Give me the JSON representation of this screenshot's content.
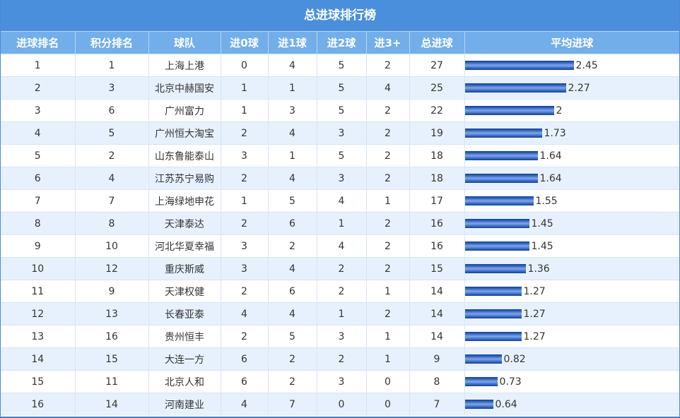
{
  "title": "总进球排行榜",
  "columns": [
    "进球排名",
    "积分排名",
    "球队",
    "进0球",
    "进1球",
    "进2球",
    "进3+",
    "总进球",
    "平均进球"
  ],
  "colors": {
    "title_bg": "#4a8fdc",
    "header_bg": "#72aeea",
    "row_alt_bg": "#e6f1fd",
    "bar": "#1f4fa8"
  },
  "rows": [
    {
      "goal_rank": "1",
      "points_rank": "1",
      "team": "上海上港",
      "g0": "0",
      "g1": "4",
      "g2": "5",
      "g3": "2",
      "total": "27",
      "avg": "2.45"
    },
    {
      "goal_rank": "2",
      "points_rank": "3",
      "team": "北京中赫国安",
      "g0": "1",
      "g1": "1",
      "g2": "5",
      "g3": "4",
      "total": "25",
      "avg": "2.27"
    },
    {
      "goal_rank": "3",
      "points_rank": "6",
      "team": "广州富力",
      "g0": "1",
      "g1": "3",
      "g2": "5",
      "g3": "2",
      "total": "22",
      "avg": "2"
    },
    {
      "goal_rank": "4",
      "points_rank": "5",
      "team": "广州恒大淘宝",
      "g0": "2",
      "g1": "4",
      "g2": "3",
      "g3": "2",
      "total": "19",
      "avg": "1.73"
    },
    {
      "goal_rank": "5",
      "points_rank": "2",
      "team": "山东鲁能泰山",
      "g0": "3",
      "g1": "1",
      "g2": "5",
      "g3": "2",
      "total": "18",
      "avg": "1.64"
    },
    {
      "goal_rank": "6",
      "points_rank": "4",
      "team": "江苏苏宁易购",
      "g0": "2",
      "g1": "4",
      "g2": "3",
      "g3": "2",
      "total": "18",
      "avg": "1.64"
    },
    {
      "goal_rank": "7",
      "points_rank": "7",
      "team": "上海绿地申花",
      "g0": "1",
      "g1": "5",
      "g2": "4",
      "g3": "1",
      "total": "17",
      "avg": "1.55"
    },
    {
      "goal_rank": "8",
      "points_rank": "8",
      "team": "天津泰达",
      "g0": "2",
      "g1": "6",
      "g2": "1",
      "g3": "2",
      "total": "16",
      "avg": "1.45"
    },
    {
      "goal_rank": "9",
      "points_rank": "10",
      "team": "河北华夏幸福",
      "g0": "3",
      "g1": "2",
      "g2": "4",
      "g3": "2",
      "total": "16",
      "avg": "1.45"
    },
    {
      "goal_rank": "10",
      "points_rank": "12",
      "team": "重庆斯威",
      "g0": "3",
      "g1": "4",
      "g2": "2",
      "g3": "2",
      "total": "15",
      "avg": "1.36"
    },
    {
      "goal_rank": "11",
      "points_rank": "9",
      "team": "天津权健",
      "g0": "2",
      "g1": "6",
      "g2": "2",
      "g3": "1",
      "total": "14",
      "avg": "1.27"
    },
    {
      "goal_rank": "12",
      "points_rank": "13",
      "team": "长春亚泰",
      "g0": "4",
      "g1": "4",
      "g2": "1",
      "g3": "2",
      "total": "14",
      "avg": "1.27"
    },
    {
      "goal_rank": "13",
      "points_rank": "16",
      "team": "贵州恒丰",
      "g0": "2",
      "g1": "5",
      "g2": "3",
      "g3": "1",
      "total": "14",
      "avg": "1.27"
    },
    {
      "goal_rank": "14",
      "points_rank": "15",
      "team": "大连一方",
      "g0": "6",
      "g1": "2",
      "g2": "2",
      "g3": "1",
      "total": "9",
      "avg": "0.82"
    },
    {
      "goal_rank": "15",
      "points_rank": "11",
      "team": "北京人和",
      "g0": "6",
      "g1": "2",
      "g2": "3",
      "g3": "0",
      "total": "8",
      "avg": "0.73"
    },
    {
      "goal_rank": "16",
      "points_rank": "14",
      "team": "河南建业",
      "g0": "4",
      "g1": "7",
      "g2": "0",
      "g3": "0",
      "total": "7",
      "avg": "0.64"
    }
  ],
  "chart_data": {
    "type": "table",
    "title": "总进球排行榜",
    "columns": [
      "进球排名",
      "积分排名",
      "球队",
      "进0球",
      "进1球",
      "进2球",
      "进3+",
      "总进球",
      "平均进球"
    ],
    "categories": [
      "上海上港",
      "北京中赫国安",
      "广州富力",
      "广州恒大淘宝",
      "山东鲁能泰山",
      "江苏苏宁易购",
      "上海绿地申花",
      "天津泰达",
      "河北华夏幸福",
      "重庆斯威",
      "天津权健",
      "长春亚泰",
      "贵州恒丰",
      "大连一方",
      "北京人和",
      "河南建业"
    ],
    "series": [
      {
        "name": "进球排名",
        "values": [
          1,
          2,
          3,
          4,
          5,
          6,
          7,
          8,
          9,
          10,
          11,
          12,
          13,
          14,
          15,
          16
        ]
      },
      {
        "name": "积分排名",
        "values": [
          1,
          3,
          6,
          5,
          2,
          4,
          7,
          8,
          10,
          12,
          9,
          13,
          16,
          15,
          11,
          14
        ]
      },
      {
        "name": "进0球",
        "values": [
          0,
          1,
          1,
          2,
          3,
          2,
          1,
          2,
          3,
          3,
          2,
          4,
          2,
          6,
          6,
          4
        ]
      },
      {
        "name": "进1球",
        "values": [
          4,
          1,
          3,
          4,
          1,
          4,
          5,
          6,
          2,
          4,
          6,
          4,
          5,
          2,
          2,
          7
        ]
      },
      {
        "name": "进2球",
        "values": [
          5,
          5,
          5,
          3,
          5,
          3,
          4,
          1,
          4,
          2,
          2,
          1,
          3,
          2,
          3,
          0
        ]
      },
      {
        "name": "进3+",
        "values": [
          2,
          4,
          2,
          2,
          2,
          2,
          1,
          2,
          2,
          2,
          1,
          2,
          1,
          1,
          0,
          0
        ]
      },
      {
        "name": "总进球",
        "values": [
          27,
          25,
          22,
          19,
          18,
          18,
          17,
          16,
          16,
          15,
          14,
          14,
          14,
          9,
          8,
          7
        ]
      },
      {
        "name": "平均进球",
        "values": [
          2.45,
          2.27,
          2,
          1.73,
          1.64,
          1.64,
          1.55,
          1.45,
          1.45,
          1.36,
          1.27,
          1.27,
          1.27,
          0.82,
          0.73,
          0.64
        ],
        "render": "inline horizontal bar"
      }
    ]
  }
}
